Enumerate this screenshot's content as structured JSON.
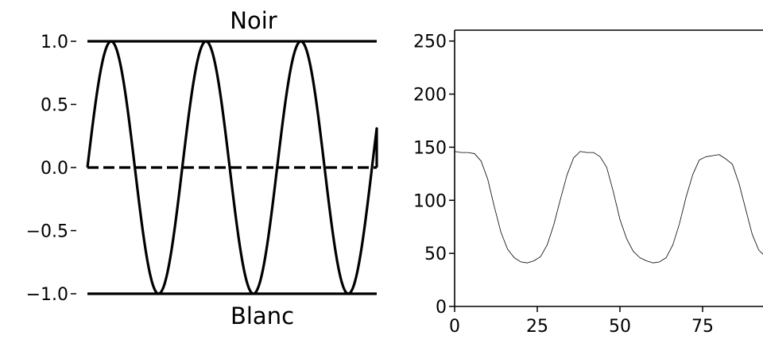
{
  "chart_data": [
    {
      "type": "line",
      "labels": {
        "top": "Noir",
        "bottom": "Blanc"
      },
      "xlim": [
        0,
        3.05
      ],
      "ylim": [
        -1.0,
        1.0
      ],
      "y_ticks": [
        1.0,
        0.5,
        0.0,
        -0.5,
        -1.0
      ],
      "y_tick_labels": [
        "1.0",
        "0.5",
        "0.0",
        "−0.5",
        "−1.0"
      ],
      "grid": false,
      "series": [
        {
          "kind": "sine",
          "cycles": 3.05,
          "values": "y = sin(2πx)",
          "style": "solid"
        },
        {
          "kind": "hline",
          "y": 0.0,
          "style": "dashed"
        },
        {
          "kind": "hline",
          "y": 1.0,
          "style": "solid"
        },
        {
          "kind": "hline",
          "y": -1.0,
          "style": "solid"
        }
      ]
    },
    {
      "type": "line",
      "xlim": [
        0,
        100
      ],
      "ylim": [
        0,
        255
      ],
      "x_ticks": [
        0,
        25,
        50,
        75
      ],
      "y_ticks": [
        0,
        50,
        100,
        150,
        200,
        250
      ],
      "grid": false,
      "series": [
        {
          "x": [
            0,
            2,
            4,
            6,
            8,
            10,
            12,
            14,
            16,
            18,
            20,
            22,
            24,
            26,
            28,
            30,
            32,
            34,
            36,
            38,
            40,
            42,
            44,
            46,
            48,
            50,
            52,
            54,
            56,
            58,
            60,
            62,
            64,
            66,
            68,
            70,
            72,
            74,
            76,
            78,
            80,
            82,
            84,
            86,
            88,
            90,
            92,
            94
          ],
          "values": [
            146,
            145,
            145,
            144,
            137,
            120,
            94,
            70,
            54,
            46,
            42,
            41,
            43,
            47,
            58,
            77,
            101,
            124,
            140,
            146,
            145,
            145,
            141,
            131,
            108,
            82,
            64,
            52,
            46,
            43,
            41,
            42,
            46,
            58,
            78,
            103,
            124,
            138,
            141,
            142,
            143,
            139,
            134,
            116,
            92,
            68,
            53,
            47
          ]
        }
      ]
    }
  ]
}
